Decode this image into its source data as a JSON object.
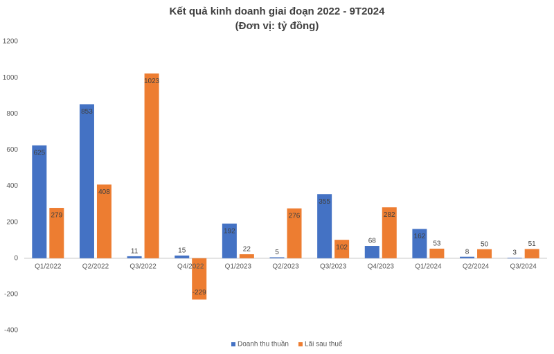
{
  "chart_data": {
    "type": "bar",
    "title": "Kết quả kinh doanh giai đoạn 2022 - 9T2024",
    "subtitle": "(Đơn vị: tỷ đồng)",
    "categories": [
      "Q1/2022",
      "Q2/2022",
      "Q3/2022",
      "Q4/2022",
      "Q1/2023",
      "Q2/2023",
      "Q3/2023",
      "Q4/2023",
      "Q1/2024",
      "Q2/2024",
      "Q3/2024"
    ],
    "series": [
      {
        "name": "Doanh thu thuần",
        "color": "#4472c4",
        "values": [
          625,
          853,
          11,
          15,
          192,
          5,
          355,
          68,
          162,
          8,
          3
        ]
      },
      {
        "name": "Lãi sau thuế",
        "color": "#ed7d31",
        "values": [
          279,
          408,
          1023,
          -229,
          22,
          276,
          102,
          282,
          53,
          50,
          51
        ]
      }
    ],
    "ylim": [
      -400,
      1200
    ],
    "yticks": [
      -400,
      -200,
      0,
      200,
      400,
      600,
      800,
      1000,
      1200
    ],
    "grid": false,
    "legend": "bottom"
  }
}
